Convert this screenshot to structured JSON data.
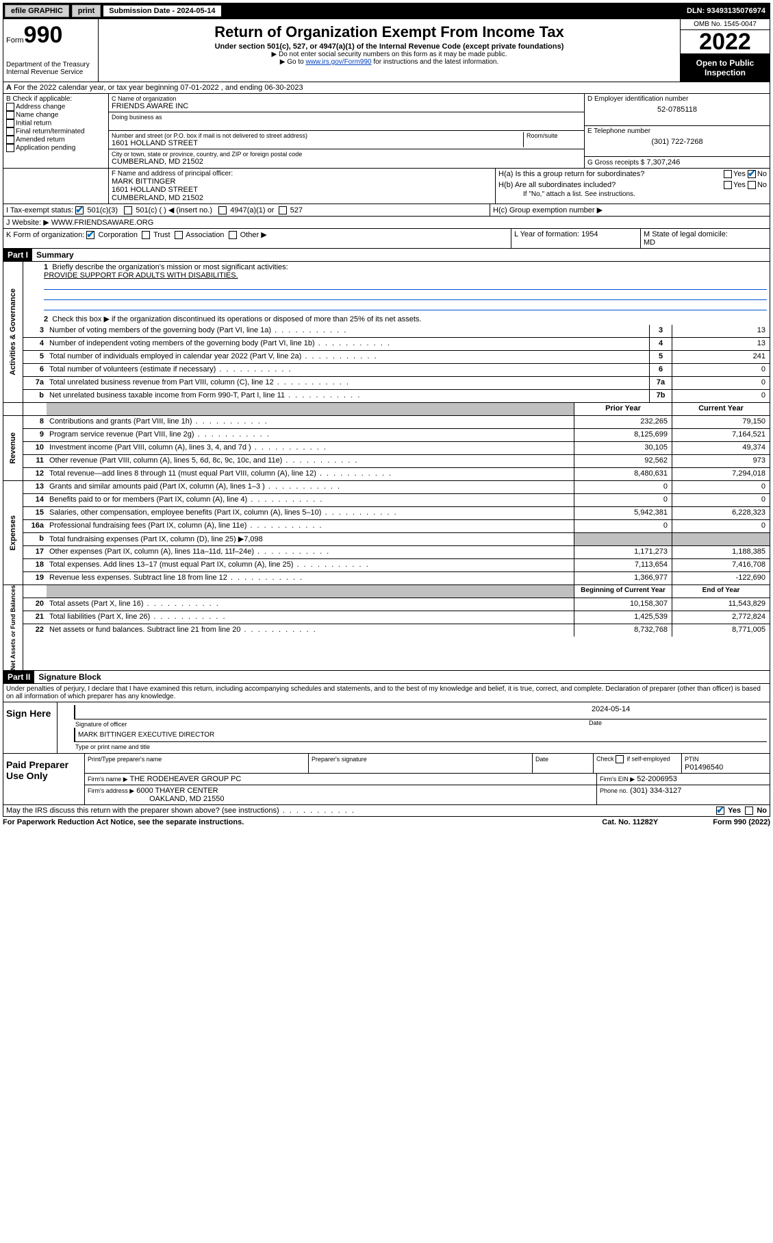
{
  "topbar": {
    "efile": "efile GRAPHIC",
    "print": "print",
    "sub_label": "Submission Date - 2024-05-14",
    "dln": "DLN: 93493135076974"
  },
  "header": {
    "form_label": "Form",
    "form_num": "990",
    "dept": "Department of the Treasury",
    "irs": "Internal Revenue Service",
    "title": "Return of Organization Exempt From Income Tax",
    "subtitle": "Under section 501(c), 527, or 4947(a)(1) of the Internal Revenue Code (except private foundations)",
    "note1": "▶ Do not enter social security numbers on this form as it may be made public.",
    "note2_pre": "▶ Go to ",
    "note2_link": "www.irs.gov/Form990",
    "note2_post": " for instructions and the latest information.",
    "omb": "OMB No. 1545-0047",
    "year": "2022",
    "open": "Open to Public Inspection"
  },
  "section_a": "For the 2022 calendar year, or tax year beginning 07-01-2022   , and ending 06-30-2023",
  "section_b": {
    "heading": "B Check if applicable:",
    "items": [
      "Address change",
      "Name change",
      "Initial return",
      "Final return/terminated",
      "Amended return",
      "Application pending"
    ]
  },
  "section_c": {
    "name_label": "C Name of organization",
    "name": "FRIENDS AWARE INC",
    "dba_label": "Doing business as",
    "addr_label": "Number and street (or P.O. box if mail is not delivered to street address)",
    "room_label": "Room/suite",
    "addr": "1601 HOLLAND STREET",
    "city_label": "City or town, state or province, country, and ZIP or foreign postal code",
    "city": "CUMBERLAND, MD  21502"
  },
  "section_d": {
    "label": "D Employer identification number",
    "ein": "52-0785118"
  },
  "section_e": {
    "label": "E Telephone number",
    "phone": "(301) 722-7268"
  },
  "section_g": {
    "label": "G Gross receipts $",
    "amount": "7,307,246"
  },
  "section_f": {
    "label": "F  Name and address of principal officer:",
    "name": "MARK BITTINGER",
    "addr1": "1601 HOLLAND STREET",
    "addr2": "CUMBERLAND, MD  21502"
  },
  "section_h": {
    "ha": "H(a)  Is this a group return for subordinates?",
    "hb": "H(b)  Are all subordinates included?",
    "hb_note": "If \"No,\" attach a list. See instructions.",
    "hc": "H(c)  Group exemption number ▶",
    "yes": "Yes",
    "no": "No"
  },
  "section_i": {
    "label": "I    Tax-exempt status:",
    "c3": "501(c)(3)",
    "c": "501(c) (  ) ◀ (insert no.)",
    "a1": "4947(a)(1) or",
    "s527": "527"
  },
  "section_j": {
    "label": "J   Website: ▶",
    "url": "WWW.FRIENDSAWARE.ORG"
  },
  "section_k": {
    "label": "K Form of organization:",
    "corp": "Corporation",
    "trust": "Trust",
    "assoc": "Association",
    "other": "Other ▶"
  },
  "section_l": {
    "label": "L Year of formation:",
    "year": "1954"
  },
  "section_m": {
    "label": "M State of legal domicile:",
    "state": "MD"
  },
  "part1": {
    "header": "Part I",
    "title": "Summary",
    "mission_label": "Briefly describe the organization's mission or most significant activities:",
    "mission": "PROVIDE SUPPORT FOR ADULTS WITH DISABILITIES.",
    "line2": "Check this box ▶      if the organization discontinued its operations or disposed of more than 25% of its net assets.",
    "activities": {
      "label": "Activities & Governance",
      "rows": [
        {
          "n": "3",
          "d": "Number of voting members of the governing body (Part VI, line 1a)",
          "box": "3",
          "v": "13"
        },
        {
          "n": "4",
          "d": "Number of independent voting members of the governing body (Part VI, line 1b)",
          "box": "4",
          "v": "13"
        },
        {
          "n": "5",
          "d": "Total number of individuals employed in calendar year 2022 (Part V, line 2a)",
          "box": "5",
          "v": "241"
        },
        {
          "n": "6",
          "d": "Total number of volunteers (estimate if necessary)",
          "box": "6",
          "v": "0"
        },
        {
          "n": "7a",
          "d": "Total unrelated business revenue from Part VIII, column (C), line 12",
          "box": "7a",
          "v": "0"
        },
        {
          "n": "b",
          "d": "Net unrelated business taxable income from Form 990-T, Part I, line 11",
          "box": "7b",
          "v": "0"
        }
      ]
    },
    "colhead": {
      "prior": "Prior Year",
      "current": "Current Year"
    },
    "revenue": {
      "label": "Revenue",
      "rows": [
        {
          "n": "8",
          "d": "Contributions and grants (Part VIII, line 1h)",
          "p": "232,265",
          "c": "79,150"
        },
        {
          "n": "9",
          "d": "Program service revenue (Part VIII, line 2g)",
          "p": "8,125,699",
          "c": "7,164,521"
        },
        {
          "n": "10",
          "d": "Investment income (Part VIII, column (A), lines 3, 4, and 7d )",
          "p": "30,105",
          "c": "49,374"
        },
        {
          "n": "11",
          "d": "Other revenue (Part VIII, column (A), lines 5, 6d, 8c, 9c, 10c, and 11e)",
          "p": "92,562",
          "c": "973"
        },
        {
          "n": "12",
          "d": "Total revenue—add lines 8 through 11 (must equal Part VIII, column (A), line 12)",
          "p": "8,480,631",
          "c": "7,294,018"
        }
      ]
    },
    "expenses": {
      "label": "Expenses",
      "rows": [
        {
          "n": "13",
          "d": "Grants and similar amounts paid (Part IX, column (A), lines 1–3 )",
          "p": "0",
          "c": "0"
        },
        {
          "n": "14",
          "d": "Benefits paid to or for members (Part IX, column (A), line 4)",
          "p": "0",
          "c": "0"
        },
        {
          "n": "15",
          "d": "Salaries, other compensation, employee benefits (Part IX, column (A), lines 5–10)",
          "p": "5,942,381",
          "c": "6,228,323"
        },
        {
          "n": "16a",
          "d": "Professional fundraising fees (Part IX, column (A), line 11e)",
          "p": "0",
          "c": "0"
        }
      ],
      "line_b": {
        "n": "b",
        "d": "Total fundraising expenses (Part IX, column (D), line 25) ▶7,098"
      },
      "rows2": [
        {
          "n": "17",
          "d": "Other expenses (Part IX, column (A), lines 11a–11d, 11f–24e)",
          "p": "1,171,273",
          "c": "1,188,385"
        },
        {
          "n": "18",
          "d": "Total expenses. Add lines 13–17 (must equal Part IX, column (A), line 25)",
          "p": "7,113,654",
          "c": "7,416,708"
        },
        {
          "n": "19",
          "d": "Revenue less expenses. Subtract line 18 from line 12",
          "p": "1,366,977",
          "c": "-122,690"
        }
      ]
    },
    "netassets": {
      "label": "Net Assets or Fund Balances",
      "colhead": {
        "begin": "Beginning of Current Year",
        "end": "End of Year"
      },
      "rows": [
        {
          "n": "20",
          "d": "Total assets (Part X, line 16)",
          "p": "10,158,307",
          "c": "11,543,829"
        },
        {
          "n": "21",
          "d": "Total liabilities (Part X, line 26)",
          "p": "1,425,539",
          "c": "2,772,824"
        },
        {
          "n": "22",
          "d": "Net assets or fund balances. Subtract line 21 from line 20",
          "p": "8,732,768",
          "c": "8,771,005"
        }
      ]
    }
  },
  "part2": {
    "header": "Part II",
    "title": "Signature Block",
    "declaration": "Under penalties of perjury, I declare that I have examined this return, including accompanying schedules and statements, and to the best of my knowledge and belief, it is true, correct, and complete. Declaration of preparer (other than officer) is based on all information of which preparer has any knowledge.",
    "sign_here": "Sign Here",
    "sig_officer": "Signature of officer",
    "sig_date_val": "2024-05-14",
    "sig_date": "Date",
    "officer_name": "MARK BITTINGER  EXECUTIVE DIRECTOR",
    "officer_caption": "Type or print name and title",
    "paid": "Paid Preparer Use Only",
    "prep_name_label": "Print/Type preparer's name",
    "prep_sig_label": "Preparer's signature",
    "date_label": "Date",
    "check_if": "Check        if self-employed",
    "ptin_label": "PTIN",
    "ptin": "P01496540",
    "firm_name_label": "Firm's name    ▶",
    "firm_name": "THE RODEHEAVER GROUP PC",
    "firm_ein_label": "Firm's EIN ▶",
    "firm_ein": "52-2006953",
    "firm_addr_label": "Firm's address ▶",
    "firm_addr1": "6000 THAYER CENTER",
    "firm_addr2": "OAKLAND, MD  21550",
    "firm_phone_label": "Phone no.",
    "firm_phone": "(301) 334-3127",
    "discuss": "May the IRS discuss this return with the preparer shown above? (see instructions)"
  },
  "footer": {
    "paperwork": "For Paperwork Reduction Act Notice, see the separate instructions.",
    "cat": "Cat. No. 11282Y",
    "form": "Form 990 (2022)"
  }
}
